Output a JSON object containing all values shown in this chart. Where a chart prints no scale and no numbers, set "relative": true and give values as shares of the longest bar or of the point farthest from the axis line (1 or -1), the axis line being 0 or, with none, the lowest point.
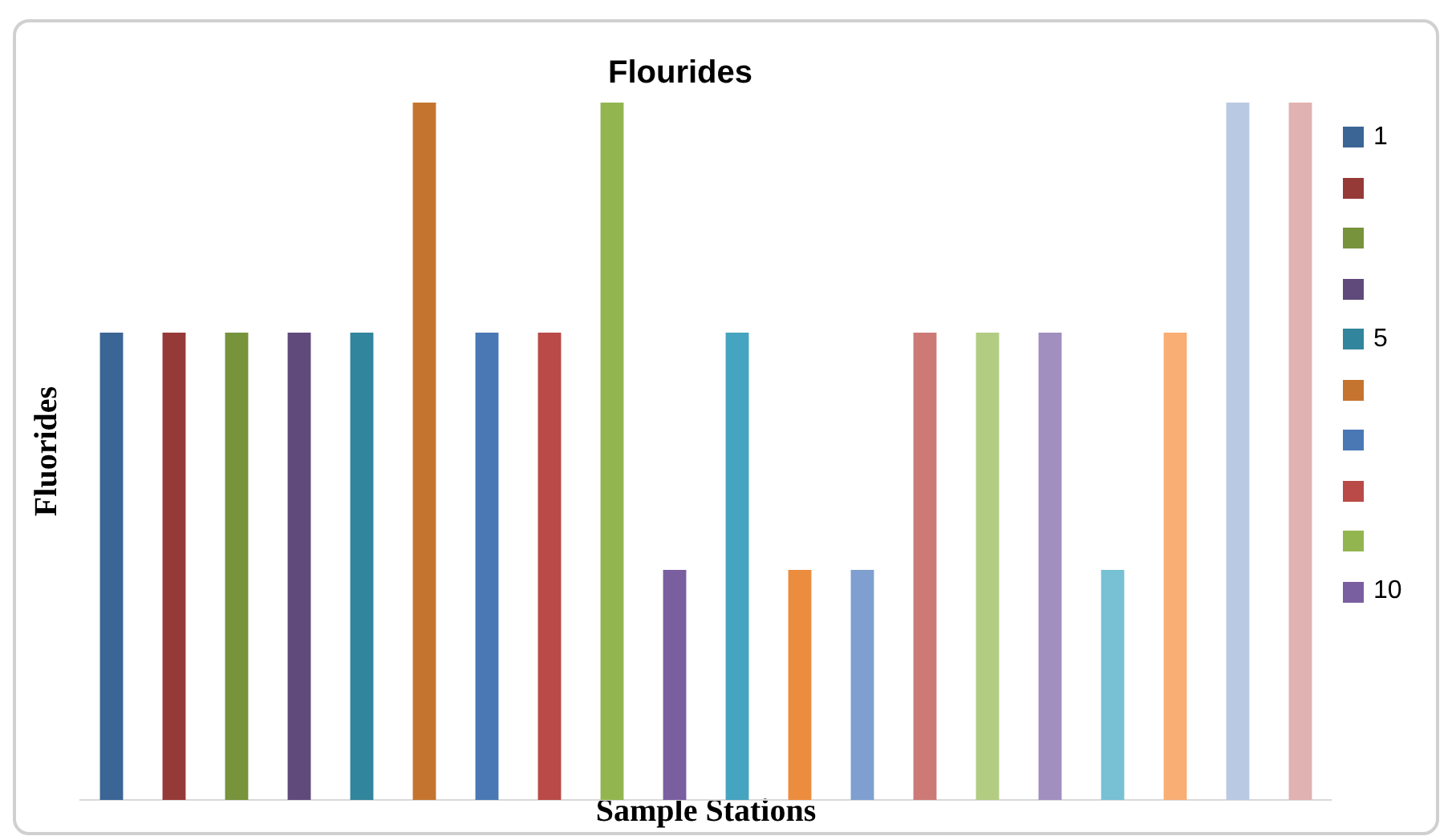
{
  "chart_data": {
    "type": "bar",
    "title": "Flourides",
    "xlabel": "Sample Stations",
    "ylabel": "Fluorides",
    "relative": true,
    "grid": false,
    "annotations": [
      "1",
      "5",
      "10"
    ],
    "categories": [
      null,
      null,
      null,
      null,
      null,
      null,
      null,
      null,
      null,
      null,
      null,
      null,
      null,
      null,
      null,
      null,
      null,
      null,
      null,
      null
    ],
    "values": [
      0.67,
      0.67,
      0.67,
      0.67,
      0.67,
      1,
      0.67,
      0.67,
      1,
      0.33,
      0.67,
      0.33,
      0.33,
      0.67,
      0.67,
      0.67,
      0.33,
      0.67,
      1,
      1
    ],
    "colors": [
      "#3b6595",
      "#963a38",
      "#77933c",
      "#604a7b",
      "#31859c",
      "#c5742f",
      "#4a78b5",
      "#b94a47",
      "#92b550",
      "#7a5fa0",
      "#45a4bf",
      "#ec8c3e",
      "#7e9fcf",
      "#cd7a77",
      "#b2cc82",
      "#a08fbf",
      "#78c0d4",
      "#f9ae74",
      "#b9c9e3",
      "#e0b2b1"
    ]
  }
}
